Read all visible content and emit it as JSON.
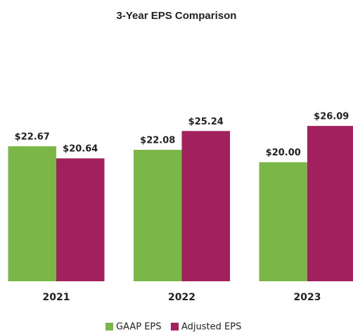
{
  "chart_data": {
    "type": "bar",
    "title": "3-Year EPS Comparison",
    "categories": [
      "2021",
      "2022",
      "2023"
    ],
    "series": [
      {
        "name": "GAAP EPS",
        "color": "#7ab648",
        "values": [
          22.67,
          22.08,
          20.0
        ],
        "value_labels": [
          "$22.67",
          "$22.08",
          "$20.00"
        ]
      },
      {
        "name": "Adjusted EPS",
        "color": "#a3205f",
        "values": [
          20.64,
          25.24,
          26.09
        ],
        "value_labels": [
          "$20.64",
          "$25.24",
          "$26.09"
        ]
      }
    ],
    "ylim": [
      0,
      30
    ],
    "grid": false,
    "legend": "bottom"
  }
}
